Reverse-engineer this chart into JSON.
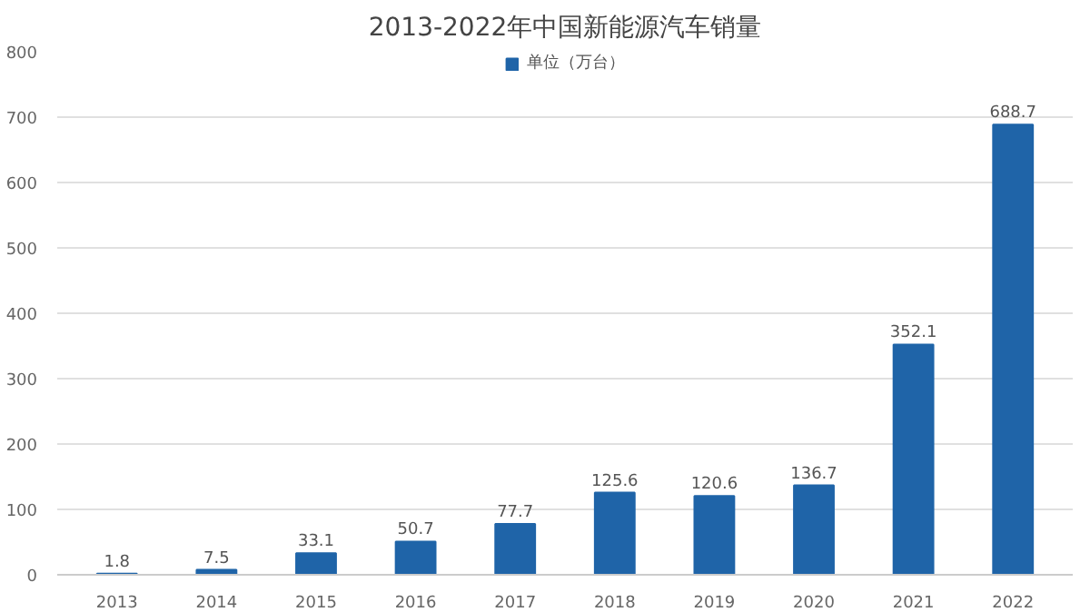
{
  "chart_data": {
    "type": "bar",
    "title": "2013-2022年中国新能源汽车销量",
    "categories": [
      "2013",
      "2014",
      "2015",
      "2016",
      "2017",
      "2018",
      "2019",
      "2020",
      "2021",
      "2022"
    ],
    "series": [
      {
        "name": "单位（万台）",
        "color": "#1f64a8",
        "values": [
          1.8,
          7.5,
          33.1,
          50.7,
          77.7,
          125.6,
          120.6,
          136.7,
          352.1,
          688.7
        ]
      }
    ],
    "ylim": [
      0,
      800
    ],
    "yticks": [
      0,
      100,
      200,
      300,
      400,
      500,
      600,
      700,
      800
    ],
    "grid": "y",
    "legend": "top",
    "data_labels": true
  }
}
